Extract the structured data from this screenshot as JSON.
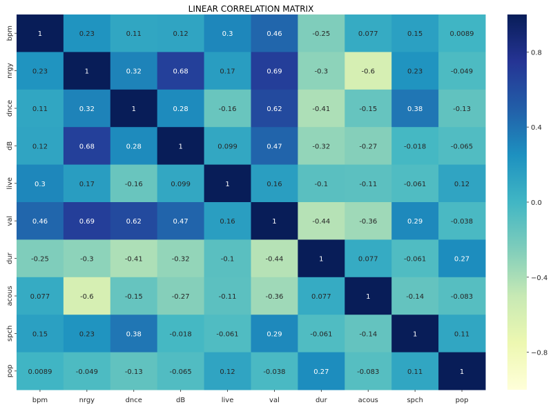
{
  "chart_data": {
    "type": "heatmap",
    "title": "LINEAR CORRELATION MATRIX",
    "x_categories": [
      "bpm",
      "nrgy",
      "dnce",
      "dB",
      "live",
      "val",
      "dur",
      "acous",
      "spch",
      "pop"
    ],
    "y_categories": [
      "bpm",
      "nrgy",
      "dnce",
      "dB",
      "live",
      "val",
      "dur",
      "acous",
      "spch",
      "pop"
    ],
    "values": [
      [
        1,
        0.23,
        0.11,
        0.12,
        0.3,
        0.46,
        -0.25,
        0.077,
        0.15,
        0.0089
      ],
      [
        0.23,
        1,
        0.32,
        0.68,
        0.17,
        0.69,
        -0.3,
        -0.6,
        0.23,
        -0.049
      ],
      [
        0.11,
        0.32,
        1,
        0.28,
        -0.16,
        0.62,
        -0.41,
        -0.15,
        0.38,
        -0.13
      ],
      [
        0.12,
        0.68,
        0.28,
        1,
        0.099,
        0.47,
        -0.32,
        -0.27,
        -0.018,
        -0.065
      ],
      [
        0.3,
        0.17,
        -0.16,
        0.099,
        1,
        0.16,
        -0.1,
        -0.11,
        -0.061,
        0.12
      ],
      [
        0.46,
        0.69,
        0.62,
        0.47,
        0.16,
        1,
        -0.44,
        -0.36,
        0.29,
        -0.038
      ],
      [
        -0.25,
        -0.3,
        -0.41,
        -0.32,
        -0.1,
        -0.44,
        1,
        0.077,
        -0.061,
        0.27
      ],
      [
        0.077,
        -0.6,
        -0.15,
        -0.27,
        -0.11,
        -0.36,
        0.077,
        1,
        -0.14,
        -0.083
      ],
      [
        0.15,
        0.23,
        0.38,
        -0.018,
        -0.061,
        0.29,
        -0.061,
        -0.14,
        1,
        0.11
      ],
      [
        0.0089,
        -0.049,
        -0.13,
        -0.065,
        0.12,
        -0.038,
        0.27,
        -0.083,
        0.11,
        1
      ]
    ],
    "labels": [
      [
        "1",
        "0.23",
        "0.11",
        "0.12",
        "0.3",
        "0.46",
        "-0.25",
        "0.077",
        "0.15",
        "0.0089"
      ],
      [
        "0.23",
        "1",
        "0.32",
        "0.68",
        "0.17",
        "0.69",
        "-0.3",
        "-0.6",
        "0.23",
        "-0.049"
      ],
      [
        "0.11",
        "0.32",
        "1",
        "0.28",
        "-0.16",
        "0.62",
        "-0.41",
        "-0.15",
        "0.38",
        "-0.13"
      ],
      [
        "0.12",
        "0.68",
        "0.28",
        "1",
        "0.099",
        "0.47",
        "-0.32",
        "-0.27",
        "-0.018",
        "-0.065"
      ],
      [
        "0.3",
        "0.17",
        "-0.16",
        "0.099",
        "1",
        "0.16",
        "-0.1",
        "-0.11",
        "-0.061",
        "0.12"
      ],
      [
        "0.46",
        "0.69",
        "0.62",
        "0.47",
        "0.16",
        "1",
        "-0.44",
        "-0.36",
        "0.29",
        "-0.038"
      ],
      [
        "-0.25",
        "-0.3",
        "-0.41",
        "-0.32",
        "-0.1",
        "-0.44",
        "1",
        "0.077",
        "-0.061",
        "0.27"
      ],
      [
        "0.077",
        "-0.6",
        "-0.15",
        "-0.27",
        "-0.11",
        "-0.36",
        "0.077",
        "1",
        "-0.14",
        "-0.083"
      ],
      [
        "0.15",
        "0.23",
        "0.38",
        "-0.018",
        "-0.061",
        "0.29",
        "-0.061",
        "-0.14",
        "1",
        "0.11"
      ],
      [
        "0.0089",
        "-0.049",
        "-0.13",
        "-0.065",
        "0.12",
        "-0.038",
        "0.27",
        "-0.083",
        "0.11",
        "1"
      ]
    ],
    "colorscale": "YlGnBu",
    "vmin": -1,
    "vmax": 1,
    "colorbar_ticks": [
      0.8,
      0.4,
      0.0,
      -0.4,
      -0.8
    ],
    "colorbar_labels": [
      "0.8",
      "0.4",
      "0.0",
      "−0.4",
      "−0.8"
    ],
    "grid": false
  }
}
